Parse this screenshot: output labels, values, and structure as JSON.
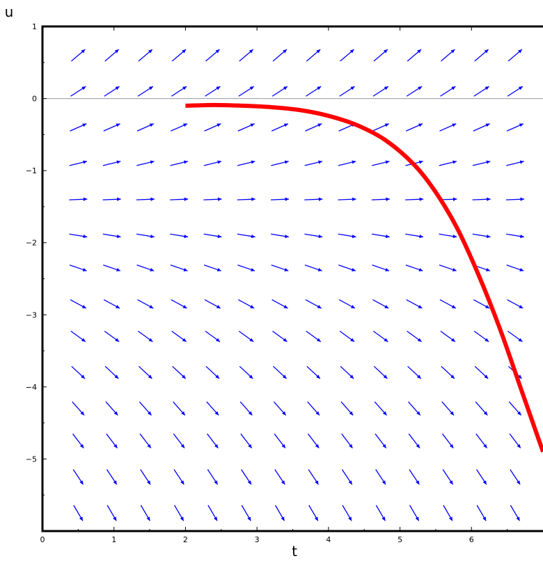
{
  "chart_data": {
    "type": "line",
    "title": "",
    "xlabel": "t",
    "ylabel": "u",
    "xlim": [
      0,
      7
    ],
    "ylim": [
      -6,
      1
    ],
    "x_ticks": [
      0,
      1,
      2,
      3,
      4,
      5,
      6
    ],
    "y_ticks": [
      1,
      0,
      -1,
      -2,
      -3,
      -4,
      -5
    ],
    "x_tick_labels": [
      "0",
      "1",
      "2",
      "3",
      "4",
      "5",
      "6"
    ],
    "y_tick_labels": [
      "1",
      "0",
      "−1",
      "−2",
      "−3",
      "−4",
      "−5"
    ],
    "grid": false,
    "zero_line": true,
    "direction_field": {
      "color": "#0000ff",
      "t_values": [
        0.5,
        0.97,
        1.44,
        1.91,
        2.38,
        2.85,
        3.32,
        3.79,
        4.26,
        4.73,
        5.2,
        5.67,
        6.14,
        6.61
      ],
      "u_values": [
        0.6,
        0.1,
        -0.4,
        -0.9,
        -1.4,
        -1.9,
        -2.35,
        -2.85,
        -3.3,
        -3.8,
        -4.3,
        -4.75,
        -5.25,
        -5.75
      ]
    },
    "series": [
      {
        "color": "#ff0000",
        "x": [
          2.0,
          2.4,
          2.8,
          3.2,
          3.6,
          4.0,
          4.4,
          4.8,
          5.2,
          5.5,
          5.8,
          6.1,
          6.4,
          6.7,
          7.0
        ],
        "y": [
          -0.1,
          -0.09,
          -0.1,
          -0.12,
          -0.16,
          -0.24,
          -0.37,
          -0.58,
          -0.92,
          -1.3,
          -1.8,
          -2.45,
          -3.2,
          -4.05,
          -4.9
        ]
      }
    ]
  }
}
